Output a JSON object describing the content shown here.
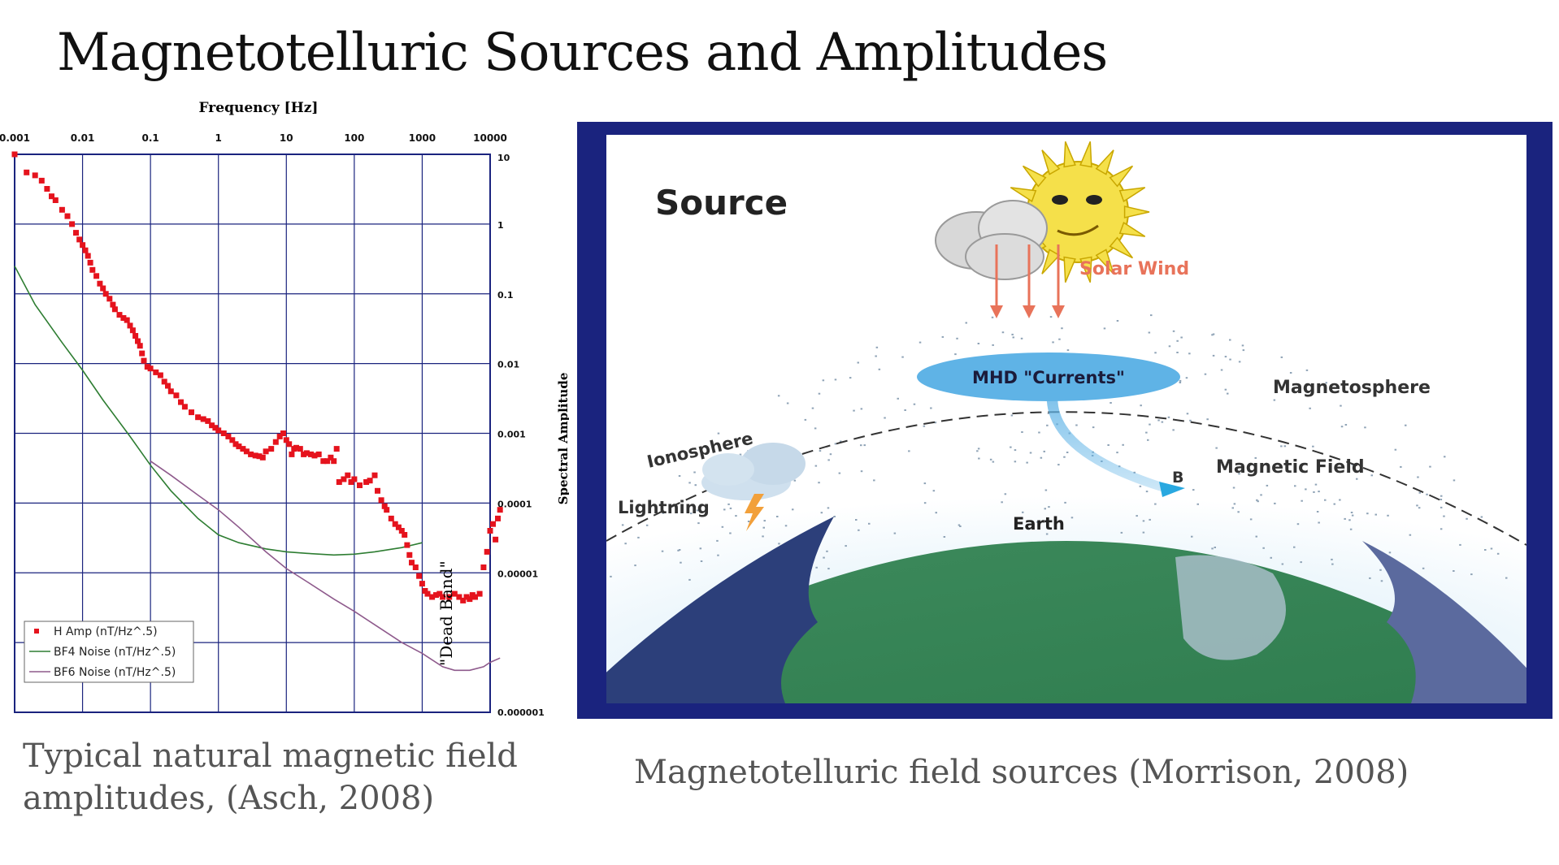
{
  "slide": {
    "title": "Magnetotelluric Sources and Amplitudes",
    "caption_left": "Typical natural magnetic field amplitudes, (Asch, 2008)",
    "caption_right": "Magnetotelluric field sources (Morrison, 2008)"
  },
  "chart_data": {
    "type": "scatter",
    "xlabel": "Frequency [Hz]",
    "ylabel": "Spectral Amplitude",
    "xscale": "log",
    "yscale": "log",
    "xlim": [
      0.001,
      10000
    ],
    "ylim": [
      1e-07,
      10
    ],
    "x_tick_labels": [
      "0.001",
      "0.01",
      "0.1",
      "1",
      "10",
      "100",
      "1000",
      "10000"
    ],
    "x_ticks": [
      0.001,
      0.01,
      0.1,
      1,
      10,
      100,
      1000,
      10000
    ],
    "y_tick_labels": [
      "10",
      "1",
      "0.1",
      "0.01",
      "0.001",
      "0.0001",
      "0.00001",
      "0.000001"
    ],
    "y_ticks": [
      10,
      1,
      0.1,
      0.01,
      0.001,
      0.0001,
      1e-05,
      1e-06
    ],
    "annotation": "\"Dead Band\"",
    "legend_position": "bottom-left",
    "series": [
      {
        "name": "H Amp (nT/Hz^.5)",
        "style": "markers",
        "color": "#e5131d",
        "points": [
          [
            0.001,
            10
          ],
          [
            0.0015,
            5.5
          ],
          [
            0.002,
            5
          ],
          [
            0.0025,
            4.2
          ],
          [
            0.003,
            3.2
          ],
          [
            0.0035,
            2.5
          ],
          [
            0.004,
            2.2
          ],
          [
            0.005,
            1.6
          ],
          [
            0.006,
            1.3
          ],
          [
            0.007,
            1.0
          ],
          [
            0.008,
            0.75
          ],
          [
            0.009,
            0.6
          ],
          [
            0.01,
            0.5
          ],
          [
            0.011,
            0.42
          ],
          [
            0.012,
            0.35
          ],
          [
            0.013,
            0.28
          ],
          [
            0.014,
            0.22
          ],
          [
            0.016,
            0.18
          ],
          [
            0.018,
            0.14
          ],
          [
            0.02,
            0.12
          ],
          [
            0.022,
            0.1
          ],
          [
            0.025,
            0.085
          ],
          [
            0.028,
            0.07
          ],
          [
            0.03,
            0.06
          ],
          [
            0.035,
            0.05
          ],
          [
            0.04,
            0.045
          ],
          [
            0.045,
            0.042
          ],
          [
            0.05,
            0.035
          ],
          [
            0.055,
            0.03
          ],
          [
            0.06,
            0.025
          ],
          [
            0.065,
            0.021
          ],
          [
            0.07,
            0.018
          ],
          [
            0.075,
            0.014
          ],
          [
            0.08,
            0.011
          ],
          [
            0.09,
            0.009
          ],
          [
            0.1,
            0.0085
          ],
          [
            0.12,
            0.0075
          ],
          [
            0.14,
            0.0068
          ],
          [
            0.16,
            0.0055
          ],
          [
            0.18,
            0.0048
          ],
          [
            0.2,
            0.004
          ],
          [
            0.24,
            0.0035
          ],
          [
            0.28,
            0.0028
          ],
          [
            0.32,
            0.0024
          ],
          [
            0.4,
            0.002
          ],
          [
            0.5,
            0.0017
          ],
          [
            0.6,
            0.0016
          ],
          [
            0.7,
            0.0015
          ],
          [
            0.8,
            0.0013
          ],
          [
            0.9,
            0.0012
          ],
          [
            1.0,
            0.0011
          ],
          [
            1.2,
            0.001
          ],
          [
            1.4,
            0.0009
          ],
          [
            1.6,
            0.0008
          ],
          [
            1.8,
            0.0007
          ],
          [
            2.0,
            0.00065
          ],
          [
            2.3,
            0.0006
          ],
          [
            2.6,
            0.00055
          ],
          [
            3.0,
            0.0005
          ],
          [
            3.5,
            0.00048
          ],
          [
            4.0,
            0.00047
          ],
          [
            4.5,
            0.00045
          ],
          [
            5.0,
            0.00055
          ],
          [
            6.0,
            0.0006
          ],
          [
            7.0,
            0.00075
          ],
          [
            8.0,
            0.0009
          ],
          [
            9.0,
            0.001
          ],
          [
            10.0,
            0.0008
          ],
          [
            11.0,
            0.0007
          ],
          [
            12.0,
            0.0005
          ],
          [
            13.0,
            0.0006
          ],
          [
            14.0,
            0.00062
          ],
          [
            16.0,
            0.0006
          ],
          [
            18.0,
            0.0005
          ],
          [
            20.0,
            0.00052
          ],
          [
            23.0,
            0.0005
          ],
          [
            26.0,
            0.00048
          ],
          [
            30.0,
            0.0005
          ],
          [
            35.0,
            0.0004
          ],
          [
            40.0,
            0.0004
          ],
          [
            45.0,
            0.00045
          ],
          [
            50.0,
            0.0004
          ],
          [
            55.0,
            0.0006
          ],
          [
            60.0,
            0.0002
          ],
          [
            70.0,
            0.00022
          ],
          [
            80.0,
            0.00025
          ],
          [
            90.0,
            0.0002
          ],
          [
            100.0,
            0.00022
          ],
          [
            120.0,
            0.00018
          ],
          [
            150.0,
            0.0002
          ],
          [
            170.0,
            0.00021
          ],
          [
            200.0,
            0.00025
          ],
          [
            220.0,
            0.00015
          ],
          [
            250.0,
            0.00011
          ],
          [
            280.0,
            9e-05
          ],
          [
            300.0,
            8e-05
          ],
          [
            350.0,
            6e-05
          ],
          [
            400.0,
            5e-05
          ],
          [
            450.0,
            4.5e-05
          ],
          [
            500.0,
            4e-05
          ],
          [
            550.0,
            3.5e-05
          ],
          [
            600.0,
            2.5e-05
          ],
          [
            650.0,
            1.8e-05
          ],
          [
            700.0,
            1.4e-05
          ],
          [
            800.0,
            1.2e-05
          ],
          [
            900.0,
            9e-06
          ],
          [
            1000.0,
            7e-06
          ],
          [
            1100.0,
            5.5e-06
          ],
          [
            1200.0,
            5e-06
          ],
          [
            1400.0,
            4.5e-06
          ],
          [
            1600.0,
            4.8e-06
          ],
          [
            1800.0,
            5e-06
          ],
          [
            2000.0,
            4.5e-06
          ],
          [
            2500.0,
            4.5e-06
          ],
          [
            3000.0,
            5e-06
          ],
          [
            3500.0,
            4.5e-06
          ],
          [
            4000.0,
            4e-06
          ],
          [
            4500.0,
            4.5e-06
          ],
          [
            5000.0,
            4.2e-06
          ],
          [
            5500.0,
            4.8e-06
          ],
          [
            6000.0,
            4.5e-06
          ],
          [
            7000.0,
            5e-06
          ],
          [
            8000.0,
            1.2e-05
          ],
          [
            9000.0,
            2e-05
          ],
          [
            10000.0,
            4e-05
          ],
          [
            11000.0,
            5e-05
          ],
          [
            12000.0,
            3e-05
          ],
          [
            13000.0,
            6e-05
          ],
          [
            14000.0,
            8e-05
          ]
        ]
      },
      {
        "name": "BF4 Noise (nT/Hz^.5)",
        "style": "line",
        "color": "#2e7d32",
        "points": [
          [
            0.001,
            0.25
          ],
          [
            0.002,
            0.07
          ],
          [
            0.005,
            0.02
          ],
          [
            0.01,
            0.008
          ],
          [
            0.02,
            0.003
          ],
          [
            0.05,
            0.0009
          ],
          [
            0.1,
            0.00035
          ],
          [
            0.2,
            0.00015
          ],
          [
            0.5,
            6e-05
          ],
          [
            1,
            3.5e-05
          ],
          [
            2,
            2.7e-05
          ],
          [
            5,
            2.2e-05
          ],
          [
            10,
            2e-05
          ],
          [
            20,
            1.9e-05
          ],
          [
            50,
            1.8e-05
          ],
          [
            100,
            1.85e-05
          ],
          [
            200,
            2e-05
          ],
          [
            500,
            2.3e-05
          ],
          [
            1000,
            2.7e-05
          ]
        ]
      },
      {
        "name": "BF6 Noise (nT/Hz^.5)",
        "style": "line",
        "color": "#8e5a8c",
        "points": [
          [
            0.1,
            0.0004
          ],
          [
            0.2,
            0.00025
          ],
          [
            0.5,
            0.00013
          ],
          [
            1,
            8e-05
          ],
          [
            2,
            4.5e-05
          ],
          [
            5,
            2e-05
          ],
          [
            10,
            1.15e-05
          ],
          [
            20,
            7.5e-06
          ],
          [
            50,
            4.2e-06
          ],
          [
            100,
            2.8e-06
          ],
          [
            200,
            1.8e-06
          ],
          [
            500,
            1e-06
          ],
          [
            1000,
            7e-07
          ],
          [
            2000,
            4.5e-07
          ],
          [
            3000,
            4e-07
          ],
          [
            5000,
            4e-07
          ],
          [
            8000,
            4.5e-07
          ],
          [
            10000,
            5.2e-07
          ],
          [
            14000,
            6e-07
          ]
        ]
      }
    ]
  },
  "diagram": {
    "source_label": "Source",
    "solar_wind_label": "Solar Wind",
    "mhd_label": "MHD \"Currents\"",
    "magnetosphere_label": "Magnetosphere",
    "ionosphere_label": "Ionosphere",
    "magnetic_field_label": "Magnetic Field",
    "b_label": "B",
    "lightning_label": "Lightning",
    "earth_label": "Earth",
    "colors": {
      "frame": "#1a237e",
      "arrow": "#e8735a",
      "solar_wind_text": "#e8735a",
      "mhd_ellipse": "#5fb3e6",
      "earth_land": "#2f7d4f",
      "earth_ocean": "#2c3f7a",
      "sun": "#f5e04a"
    }
  }
}
